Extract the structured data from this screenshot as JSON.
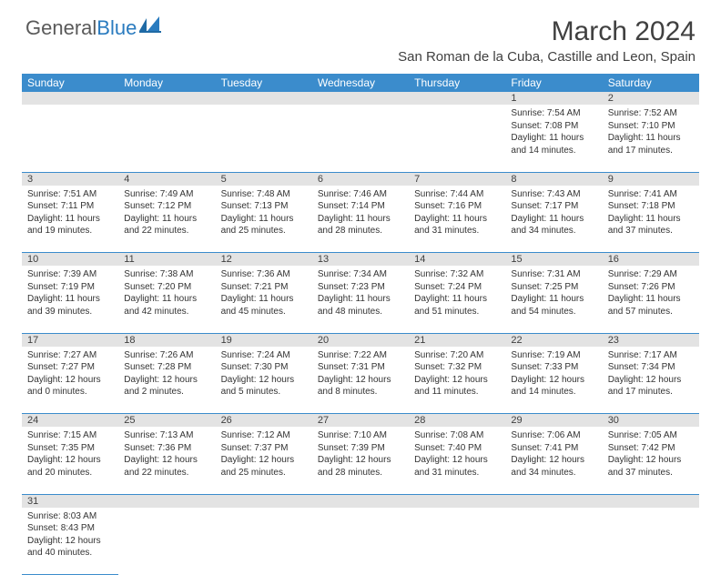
{
  "logo": {
    "text1": "General",
    "text2": "Blue"
  },
  "title": "March 2024",
  "location": "San Roman de la Cuba, Castille and Leon, Spain",
  "colors": {
    "header_bg": "#3b8ccc",
    "header_fg": "#ffffff",
    "daynum_bg": "#e3e3e3",
    "border": "#3b8ccc",
    "text": "#333333"
  },
  "weekdays": [
    "Sunday",
    "Monday",
    "Tuesday",
    "Wednesday",
    "Thursday",
    "Friday",
    "Saturday"
  ],
  "weeks": [
    [
      null,
      null,
      null,
      null,
      null,
      {
        "n": "1",
        "sr": "7:54 AM",
        "ss": "7:08 PM",
        "dl": "11 hours and 14 minutes."
      },
      {
        "n": "2",
        "sr": "7:52 AM",
        "ss": "7:10 PM",
        "dl": "11 hours and 17 minutes."
      }
    ],
    [
      {
        "n": "3",
        "sr": "7:51 AM",
        "ss": "7:11 PM",
        "dl": "11 hours and 19 minutes."
      },
      {
        "n": "4",
        "sr": "7:49 AM",
        "ss": "7:12 PM",
        "dl": "11 hours and 22 minutes."
      },
      {
        "n": "5",
        "sr": "7:48 AM",
        "ss": "7:13 PM",
        "dl": "11 hours and 25 minutes."
      },
      {
        "n": "6",
        "sr": "7:46 AM",
        "ss": "7:14 PM",
        "dl": "11 hours and 28 minutes."
      },
      {
        "n": "7",
        "sr": "7:44 AM",
        "ss": "7:16 PM",
        "dl": "11 hours and 31 minutes."
      },
      {
        "n": "8",
        "sr": "7:43 AM",
        "ss": "7:17 PM",
        "dl": "11 hours and 34 minutes."
      },
      {
        "n": "9",
        "sr": "7:41 AM",
        "ss": "7:18 PM",
        "dl": "11 hours and 37 minutes."
      }
    ],
    [
      {
        "n": "10",
        "sr": "7:39 AM",
        "ss": "7:19 PM",
        "dl": "11 hours and 39 minutes."
      },
      {
        "n": "11",
        "sr": "7:38 AM",
        "ss": "7:20 PM",
        "dl": "11 hours and 42 minutes."
      },
      {
        "n": "12",
        "sr": "7:36 AM",
        "ss": "7:21 PM",
        "dl": "11 hours and 45 minutes."
      },
      {
        "n": "13",
        "sr": "7:34 AM",
        "ss": "7:23 PM",
        "dl": "11 hours and 48 minutes."
      },
      {
        "n": "14",
        "sr": "7:32 AM",
        "ss": "7:24 PM",
        "dl": "11 hours and 51 minutes."
      },
      {
        "n": "15",
        "sr": "7:31 AM",
        "ss": "7:25 PM",
        "dl": "11 hours and 54 minutes."
      },
      {
        "n": "16",
        "sr": "7:29 AM",
        "ss": "7:26 PM",
        "dl": "11 hours and 57 minutes."
      }
    ],
    [
      {
        "n": "17",
        "sr": "7:27 AM",
        "ss": "7:27 PM",
        "dl": "12 hours and 0 minutes."
      },
      {
        "n": "18",
        "sr": "7:26 AM",
        "ss": "7:28 PM",
        "dl": "12 hours and 2 minutes."
      },
      {
        "n": "19",
        "sr": "7:24 AM",
        "ss": "7:30 PM",
        "dl": "12 hours and 5 minutes."
      },
      {
        "n": "20",
        "sr": "7:22 AM",
        "ss": "7:31 PM",
        "dl": "12 hours and 8 minutes."
      },
      {
        "n": "21",
        "sr": "7:20 AM",
        "ss": "7:32 PM",
        "dl": "12 hours and 11 minutes."
      },
      {
        "n": "22",
        "sr": "7:19 AM",
        "ss": "7:33 PM",
        "dl": "12 hours and 14 minutes."
      },
      {
        "n": "23",
        "sr": "7:17 AM",
        "ss": "7:34 PM",
        "dl": "12 hours and 17 minutes."
      }
    ],
    [
      {
        "n": "24",
        "sr": "7:15 AM",
        "ss": "7:35 PM",
        "dl": "12 hours and 20 minutes."
      },
      {
        "n": "25",
        "sr": "7:13 AM",
        "ss": "7:36 PM",
        "dl": "12 hours and 22 minutes."
      },
      {
        "n": "26",
        "sr": "7:12 AM",
        "ss": "7:37 PM",
        "dl": "12 hours and 25 minutes."
      },
      {
        "n": "27",
        "sr": "7:10 AM",
        "ss": "7:39 PM",
        "dl": "12 hours and 28 minutes."
      },
      {
        "n": "28",
        "sr": "7:08 AM",
        "ss": "7:40 PM",
        "dl": "12 hours and 31 minutes."
      },
      {
        "n": "29",
        "sr": "7:06 AM",
        "ss": "7:41 PM",
        "dl": "12 hours and 34 minutes."
      },
      {
        "n": "30",
        "sr": "7:05 AM",
        "ss": "7:42 PM",
        "dl": "12 hours and 37 minutes."
      }
    ],
    [
      {
        "n": "31",
        "sr": "8:03 AM",
        "ss": "8:43 PM",
        "dl": "12 hours and 40 minutes."
      },
      null,
      null,
      null,
      null,
      null,
      null
    ]
  ],
  "labels": {
    "sunrise": "Sunrise: ",
    "sunset": "Sunset: ",
    "daylight": "Daylight: "
  }
}
